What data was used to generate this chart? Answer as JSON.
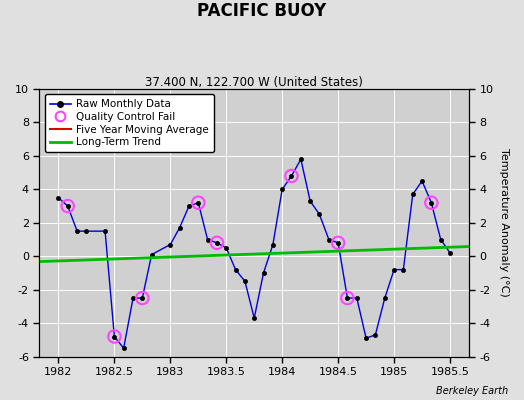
{
  "title": "PACIFIC BUOY",
  "subtitle": "37.400 N, 122.700 W (United States)",
  "ylabel": "Temperature Anomaly (°C)",
  "credit": "Berkeley Earth",
  "xlim": [
    1981.83,
    1985.67
  ],
  "ylim": [
    -6,
    10
  ],
  "xticks": [
    1982,
    1982.5,
    1983,
    1983.5,
    1984,
    1984.5,
    1985,
    1985.5
  ],
  "yticks": [
    -6,
    -4,
    -2,
    0,
    2,
    4,
    6,
    8,
    10
  ],
  "bg_color": "#e0e0e0",
  "plot_bg_color": "#d0d0d0",
  "raw_x": [
    1982.0,
    1982.083,
    1982.167,
    1982.25,
    1982.417,
    1982.5,
    1982.583,
    1982.667,
    1982.75,
    1982.833,
    1983.0,
    1983.083,
    1983.167,
    1983.25,
    1983.333,
    1983.417,
    1983.5,
    1983.583,
    1983.667,
    1983.75,
    1983.833,
    1983.917,
    1984.0,
    1984.083,
    1984.167,
    1984.25,
    1984.333,
    1984.417,
    1984.5,
    1984.583,
    1984.667,
    1984.75,
    1984.833,
    1984.917,
    1985.0,
    1985.083,
    1985.167,
    1985.25,
    1985.333,
    1985.417,
    1985.5
  ],
  "raw_y": [
    3.5,
    3.0,
    1.5,
    1.5,
    1.5,
    -4.8,
    -5.5,
    -2.5,
    -2.5,
    0.1,
    0.7,
    1.7,
    3.0,
    3.2,
    1.0,
    0.8,
    0.5,
    -0.8,
    -1.5,
    -3.7,
    -1.0,
    0.7,
    4.0,
    4.8,
    5.8,
    3.3,
    2.5,
    1.0,
    0.8,
    -2.5,
    -2.5,
    -4.9,
    -4.7,
    -2.5,
    -0.8,
    -0.8,
    3.7,
    4.5,
    3.2,
    1.0,
    0.2
  ],
  "qc_fail_x": [
    1982.083,
    1982.5,
    1982.75,
    1983.25,
    1983.417,
    1984.083,
    1984.5,
    1984.583,
    1985.333
  ],
  "qc_fail_y": [
    3.0,
    -4.8,
    -2.5,
    3.2,
    0.8,
    4.8,
    0.8,
    -2.5,
    3.2
  ],
  "trend_x": [
    1981.83,
    1985.67
  ],
  "trend_y": [
    -0.32,
    0.58
  ],
  "raw_color": "#0000dd",
  "raw_marker_color": "#000000",
  "qc_color": "#ff44ff",
  "trend_color": "#00bb00",
  "five_year_color": "#dd0000"
}
